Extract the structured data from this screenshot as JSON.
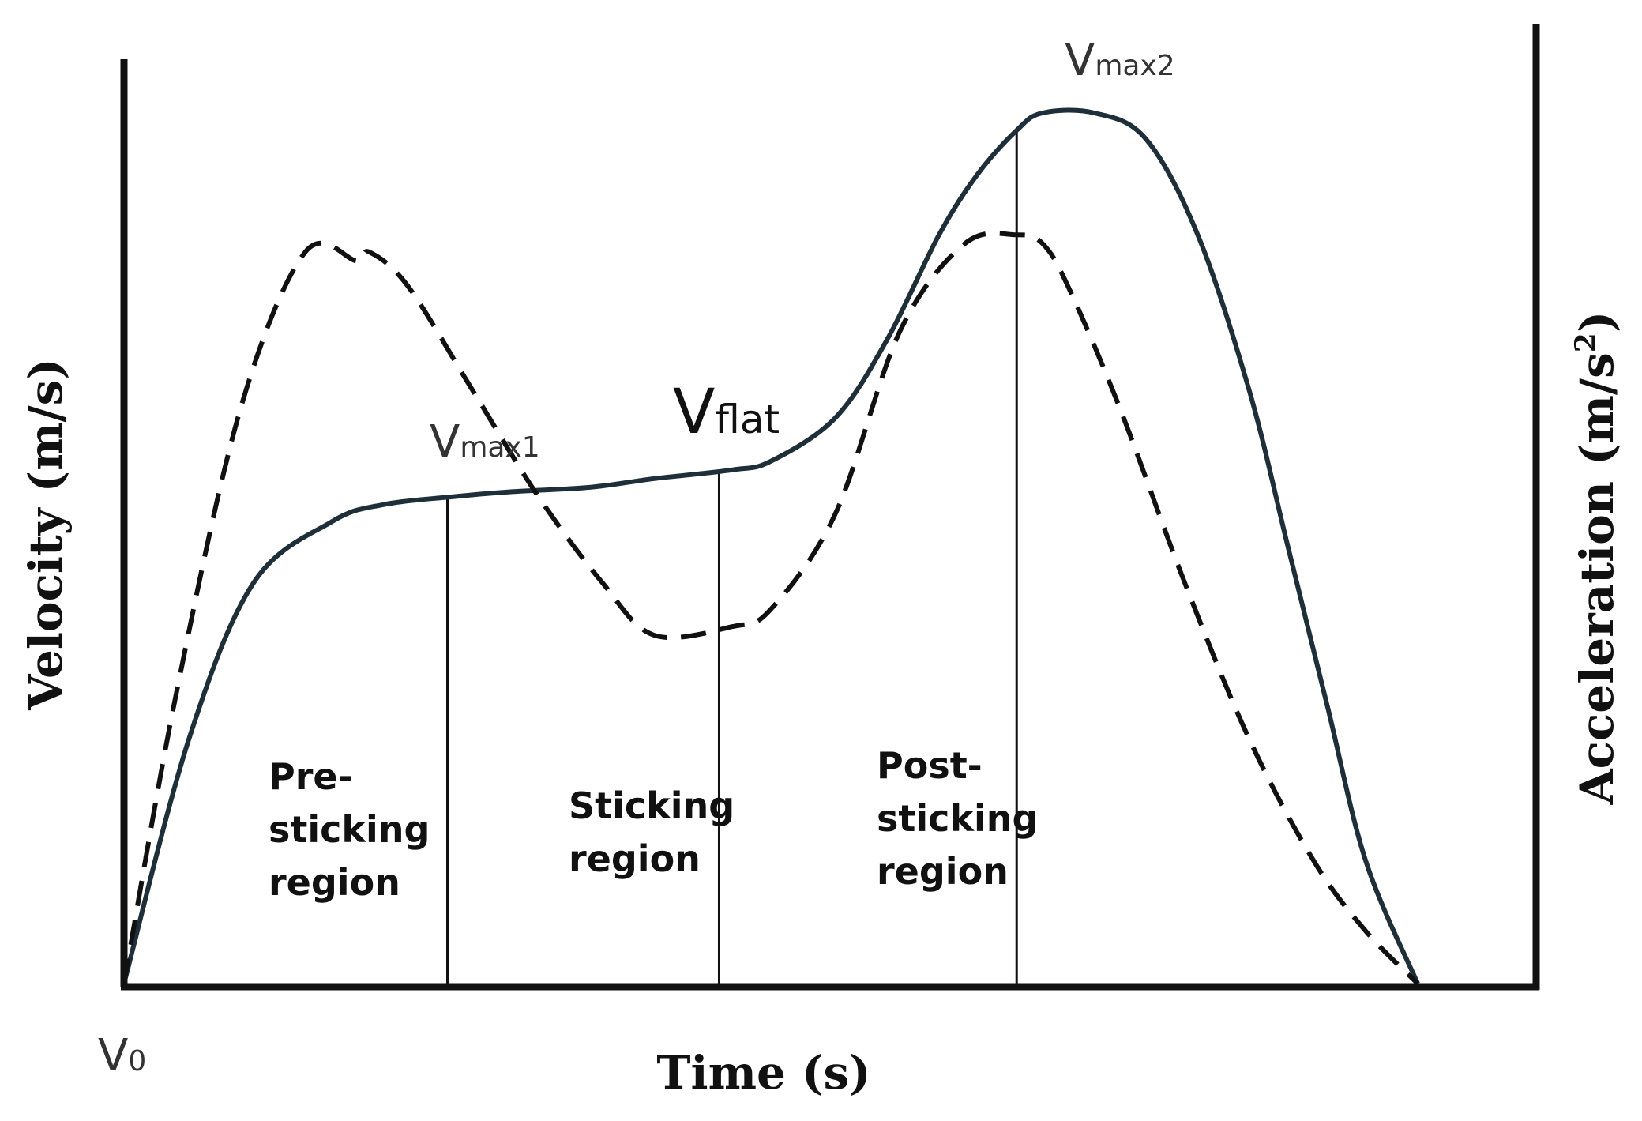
{
  "chart_data": {
    "type": "line",
    "title": "",
    "xlabel": "Time (s)",
    "ylabel": "Velocity (m/s)",
    "ylabel_right_base": "Acceleration (m/s",
    "ylabel_right_sup": "2",
    "ylabel_right_close": ")",
    "grid": false,
    "xlim": [
      0,
      1
    ],
    "ylim": [
      0,
      1
    ],
    "series": [
      {
        "style": "solid",
        "color": "#1f2f3a",
        "x": [
          0,
          0.05,
          0.1,
          0.16,
          0.2,
          0.26,
          0.3,
          0.36,
          0.41,
          0.47,
          0.5,
          0.55,
          0.59,
          0.63,
          0.66,
          0.69,
          0.71,
          0.75,
          0.79,
          0.83,
          0.87,
          0.9,
          0.93,
          0.96,
          1.0
        ],
        "y": [
          0,
          0.28,
          0.46,
          0.53,
          0.55,
          0.56,
          0.565,
          0.57,
          0.58,
          0.59,
          0.6,
          0.65,
          0.74,
          0.86,
          0.93,
          0.98,
          1.0,
          1.0,
          0.97,
          0.86,
          0.68,
          0.5,
          0.32,
          0.14,
          0
        ]
      },
      {
        "style": "dashed",
        "color": "#111111",
        "x": [
          0,
          0.04,
          0.09,
          0.14,
          0.18,
          0.19,
          0.22,
          0.27,
          0.32,
          0.37,
          0.41,
          0.47,
          0.5,
          0.55,
          0.6,
          0.65,
          0.69,
          0.71,
          0.73,
          0.77,
          0.82,
          0.87,
          0.92,
          0.96,
          1.0
        ],
        "y": [
          0,
          0.33,
          0.66,
          0.84,
          0.83,
          0.84,
          0.8,
          0.68,
          0.56,
          0.46,
          0.4,
          0.41,
          0.43,
          0.54,
          0.75,
          0.85,
          0.86,
          0.85,
          0.8,
          0.66,
          0.46,
          0.28,
          0.14,
          0.06,
          0
        ]
      }
    ],
    "dividers_x": [
      0.25,
      0.46,
      0.69
    ],
    "region_labels": [
      {
        "lines": [
          "Pre-",
          "sticking",
          "region"
        ]
      },
      {
        "lines": [
          "Sticking",
          "region"
        ]
      },
      {
        "lines": [
          "Post-",
          "sticking",
          "region"
        ]
      }
    ],
    "point_labels": {
      "v0": {
        "main": "V",
        "sub": "0"
      },
      "vmax1": {
        "main": "V",
        "sub": "max1"
      },
      "vflat": {
        "main": "V",
        "sub": "flat"
      },
      "vmax2": {
        "main": "V",
        "sub": "max2"
      }
    }
  }
}
